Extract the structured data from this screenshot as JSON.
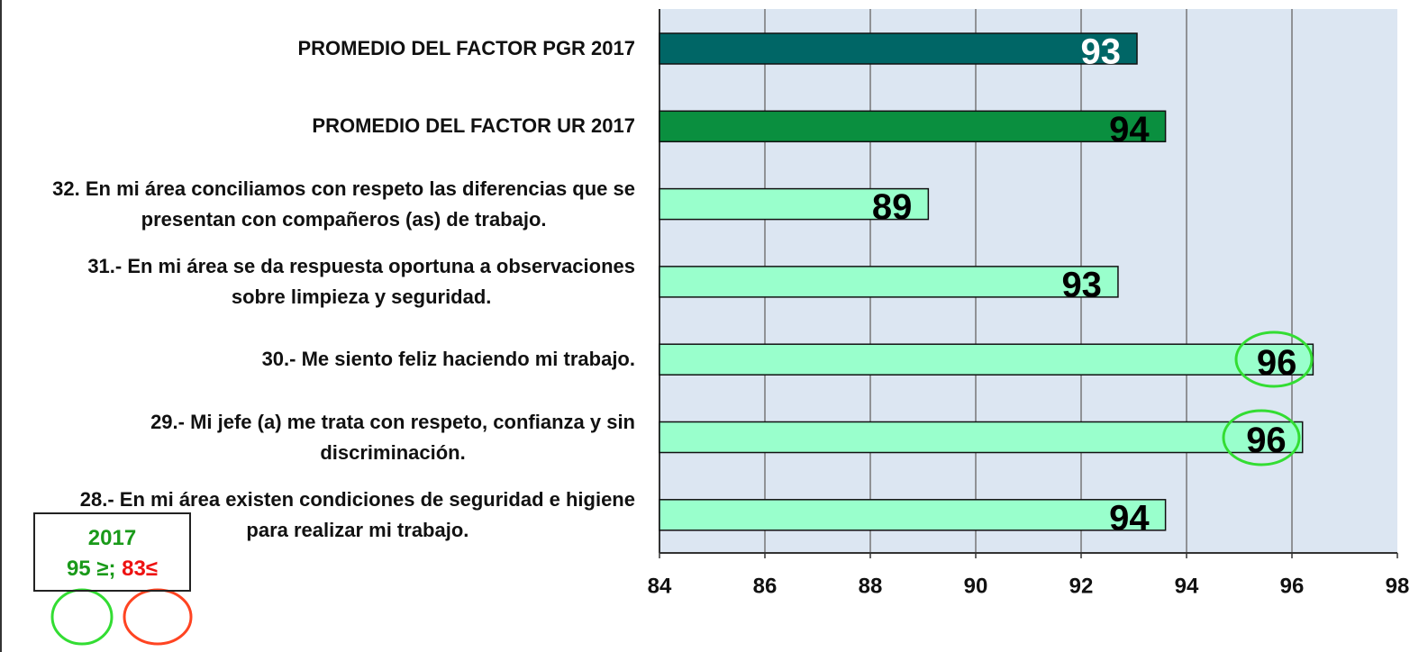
{
  "chart_data": {
    "type": "bar",
    "categories": [
      "PROMEDIO DEL FACTOR PGR 2017",
      "PROMEDIO DEL FACTOR UR 2017",
      "32. En mi área conciliamos con respeto las diferencias que se\npresentan con compañeros (as) de trabajo.",
      "31.- En mi área se da respuesta oportuna a observaciones\nsobre limpieza y seguridad.",
      "30.- Me siento feliz haciendo mi trabajo.",
      "29.- Mi jefe (a) me trata con respeto, confianza y sin\ndiscriminación.",
      "28.- En mi área existen condiciones de seguridad e higiene\npara realizar mi trabajo."
    ],
    "values": [
      93.06,
      93.6,
      89.1,
      92.7,
      96.4,
      96.2,
      93.6
    ],
    "value_labels": [
      "93",
      "94",
      "89",
      "93",
      "96",
      "96",
      "94"
    ],
    "colors": [
      "#006666",
      "#0a8f3f",
      "#99ffcc",
      "#99ffcc",
      "#99ffcc",
      "#99ffcc",
      "#99ffcc"
    ],
    "xlim": [
      84,
      98
    ],
    "xticks": [
      84,
      86,
      88,
      90,
      92,
      94,
      96,
      98
    ],
    "grid": true
  },
  "legend": {
    "year": "2017",
    "high": "95 ≥;",
    "low": "83≤"
  }
}
